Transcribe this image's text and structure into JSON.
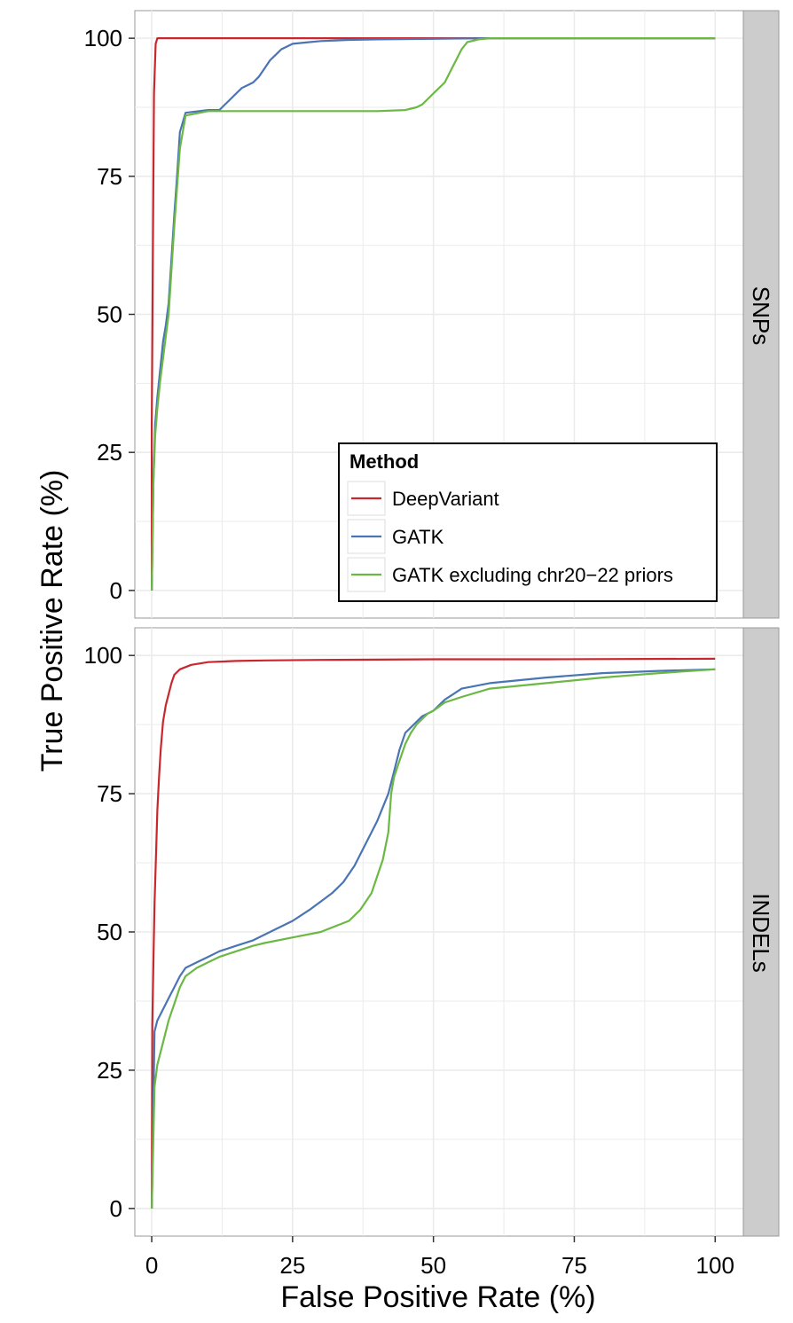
{
  "chart_data": {
    "type": "line",
    "xlabel": "False Positive Rate (%)",
    "ylabel": "True Positive Rate (%)",
    "xlim": [
      -3,
      105
    ],
    "ylim": [
      -5,
      105
    ],
    "x_ticks": [
      "0",
      "25",
      "50",
      "75",
      "100"
    ],
    "y_ticks": [
      "0",
      "25",
      "50",
      "75",
      "100"
    ],
    "grid": true,
    "legend": {
      "title": "Method",
      "placement": "bottom-right of top panel",
      "entries": [
        "DeepVariant",
        "GATK",
        "GATK excluding chr20−22 priors"
      ]
    },
    "colors": {
      "DeepVariant": "#c8282d",
      "GATK": "#4a74b4",
      "GATK excluding chr20−22 priors": "#6cb844",
      "panel_bg": "#ffffff",
      "grid": "#ebebeb",
      "strip_bg": "#cccccc"
    },
    "panels": [
      {
        "strip": "SNPs",
        "series": [
          {
            "name": "DeepVariant",
            "x": [
              0,
              0,
              0.2,
              0.4,
              0.7,
              1,
              100
            ],
            "y": [
              0,
              30,
              60,
              90,
              99,
              100,
              100
            ]
          },
          {
            "name": "GATK",
            "x": [
              0,
              0.3,
              0.6,
              1,
              1.5,
              2,
              2.5,
              3,
              3.5,
              4,
              4.5,
              5,
              6,
              10,
              12,
              13,
              14,
              15,
              16,
              17,
              18,
              19,
              20,
              21,
              22,
              23,
              24,
              25,
              28,
              30,
              35,
              40,
              50,
              60,
              100
            ],
            "y": [
              0,
              20,
              30,
              35,
              40,
              45,
              48,
              52,
              60,
              68,
              75,
              83,
              86.5,
              87,
              87,
              88,
              89,
              90,
              91,
              91.5,
              92,
              93,
              94.5,
              96,
              97,
              98,
              98.5,
              99,
              99.3,
              99.5,
              99.7,
              99.8,
              99.9,
              100,
              100
            ]
          },
          {
            "name": "GATK excluding chr20−22 priors",
            "x": [
              0,
              0.3,
              0.6,
              1,
              1.5,
              2,
              2.5,
              3,
              3.5,
              4,
              4.5,
              5,
              6,
              10,
              20,
              30,
              40,
              45,
              47,
              48,
              49,
              50,
              51,
              52,
              53,
              54,
              55,
              56,
              58,
              60,
              100
            ],
            "y": [
              0,
              20,
              28,
              33,
              38,
              42,
              46,
              50,
              58,
              66,
              73,
              80,
              86,
              86.8,
              86.8,
              86.8,
              86.8,
              87,
              87.5,
              88,
              89,
              90,
              91,
              92,
              94,
              96,
              98,
              99.3,
              99.8,
              100,
              100
            ]
          }
        ]
      },
      {
        "strip": "INDELs",
        "series": [
          {
            "name": "DeepVariant",
            "x": [
              0,
              0.1,
              0.3,
              0.5,
              0.8,
              1,
              1.3,
              1.6,
              2,
              2.5,
              3,
              3.5,
              4,
              5,
              7,
              10,
              15,
              20,
              30,
              50,
              70,
              100
            ],
            "y": [
              0,
              33,
              45,
              55,
              65,
              72,
              78,
              83,
              88,
              91,
              93,
              95,
              96.5,
              97.5,
              98.3,
              98.8,
              99,
              99.1,
              99.2,
              99.3,
              99.3,
              99.4
            ]
          },
          {
            "name": "GATK",
            "x": [
              0,
              0.5,
              1,
              2,
              3,
              4,
              5,
              6,
              8,
              10,
              12,
              15,
              18,
              20,
              22,
              25,
              28,
              30,
              32,
              34,
              36,
              38,
              40,
              42,
              43,
              44,
              45,
              46,
              47,
              48,
              50,
              52,
              55,
              60,
              70,
              80,
              90,
              100
            ],
            "y": [
              0,
              32,
              34,
              36,
              38,
              40,
              42,
              43.5,
              44.5,
              45.5,
              46.5,
              47.5,
              48.5,
              49.5,
              50.5,
              52,
              54,
              55.5,
              57,
              59,
              62,
              66,
              70,
              75,
              79,
              83,
              86,
              87,
              88,
              89,
              90,
              92,
              94,
              95,
              96,
              96.8,
              97.2,
              97.5
            ]
          },
          {
            "name": "GATK excluding chr20−22 priors",
            "x": [
              0,
              0.5,
              1,
              2,
              3,
              4,
              5,
              6,
              8,
              10,
              12,
              15,
              18,
              20,
              25,
              30,
              35,
              37,
              39,
              40,
              41,
              42,
              42.5,
              43,
              44,
              45,
              46,
              47,
              48,
              49,
              50,
              52,
              55,
              60,
              70,
              80,
              90,
              100
            ],
            "y": [
              0,
              22,
              26,
              30,
              34,
              37,
              40,
              42,
              43.5,
              44.5,
              45.5,
              46.5,
              47.5,
              48,
              49,
              50,
              52,
              54,
              57,
              60,
              63,
              68,
              75,
              78,
              81,
              84,
              86,
              87.5,
              88.5,
              89.5,
              90,
              91.5,
              92.5,
              94,
              95,
              96,
              96.8,
              97.5
            ]
          }
        ]
      }
    ]
  }
}
